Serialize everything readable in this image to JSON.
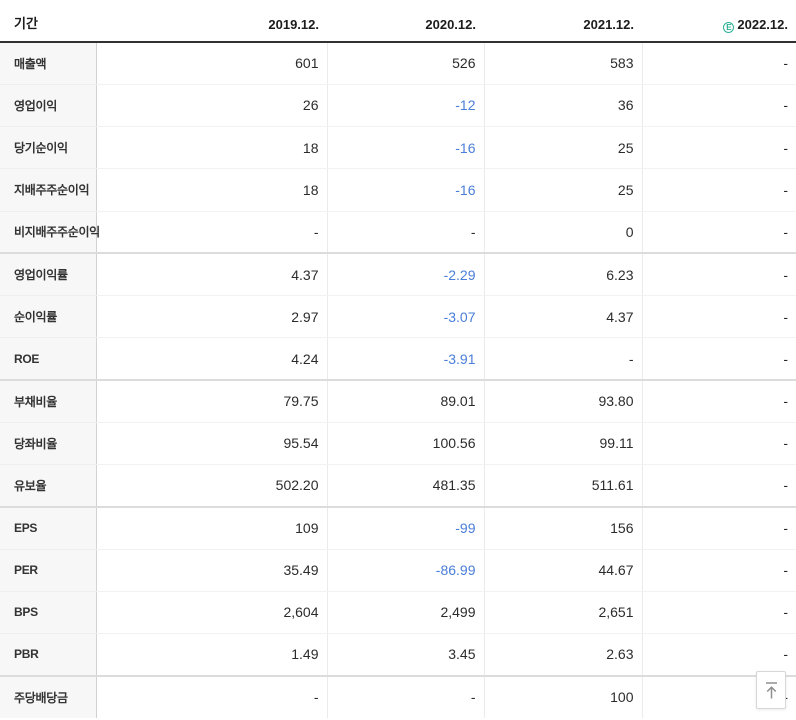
{
  "colors": {
    "negative_value": "#4a7ed9",
    "estimate_badge": "#2bb197",
    "header_border": "#313131"
  },
  "table": {
    "period_header": "기간",
    "columns": [
      "2019.12.",
      "2020.12.",
      "2021.12.",
      "2022.12."
    ],
    "estimate_badge_letter": "E",
    "sections": [
      {
        "rows": [
          {
            "label": "매출액",
            "values": [
              "601",
              "526",
              "583",
              "-"
            ]
          },
          {
            "label": "영업이익",
            "values": [
              "26",
              "-12",
              "36",
              "-"
            ]
          },
          {
            "label": "당기순이익",
            "values": [
              "18",
              "-16",
              "25",
              "-"
            ]
          },
          {
            "label": "지배주주순이익",
            "values": [
              "18",
              "-16",
              "25",
              "-"
            ]
          },
          {
            "label": "비지배주주순이익",
            "values": [
              "-",
              "-",
              "0",
              "-"
            ]
          }
        ]
      },
      {
        "rows": [
          {
            "label": "영업이익률",
            "values": [
              "4.37",
              "-2.29",
              "6.23",
              "-"
            ]
          },
          {
            "label": "순이익률",
            "values": [
              "2.97",
              "-3.07",
              "4.37",
              "-"
            ]
          },
          {
            "label": "ROE",
            "values": [
              "4.24",
              "-3.91",
              "-",
              "-"
            ]
          }
        ]
      },
      {
        "rows": [
          {
            "label": "부채비율",
            "values": [
              "79.75",
              "89.01",
              "93.80",
              "-"
            ]
          },
          {
            "label": "당좌비율",
            "values": [
              "95.54",
              "100.56",
              "99.11",
              "-"
            ]
          },
          {
            "label": "유보율",
            "values": [
              "502.20",
              "481.35",
              "511.61",
              "-"
            ]
          }
        ]
      },
      {
        "rows": [
          {
            "label": "EPS",
            "values": [
              "109",
              "-99",
              "156",
              "-"
            ]
          },
          {
            "label": "PER",
            "values": [
              "35.49",
              "-86.99",
              "44.67",
              "-"
            ]
          },
          {
            "label": "BPS",
            "values": [
              "2,604",
              "2,499",
              "2,651",
              "-"
            ]
          },
          {
            "label": "PBR",
            "values": [
              "1.49",
              "3.45",
              "2.63",
              "-"
            ]
          }
        ]
      },
      {
        "rows": [
          {
            "label": "주당배당금",
            "values": [
              "-",
              "-",
              "100",
              "-"
            ]
          }
        ]
      }
    ]
  }
}
